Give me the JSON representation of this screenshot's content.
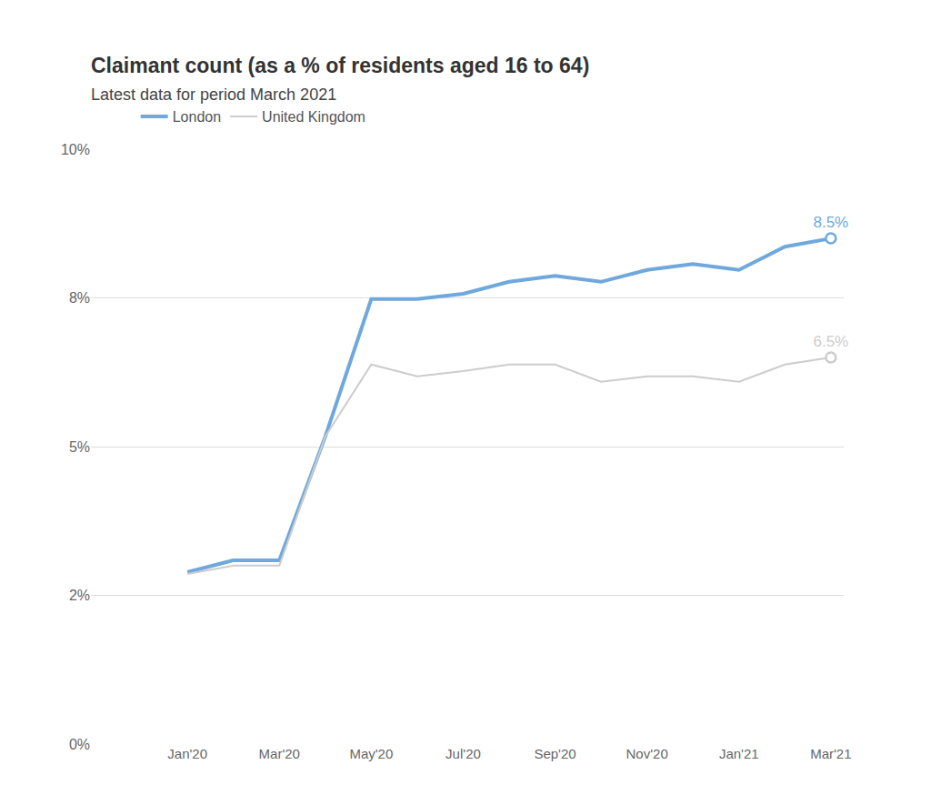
{
  "chart_data": {
    "type": "line",
    "title": "Claimant count (as a % of residents aged 16 to 64)",
    "subtitle": "Latest data for period March 2021",
    "categories": [
      "Jan'20",
      null,
      "Mar'20",
      null,
      "May'20",
      null,
      "Jul'20",
      null,
      "Sep'20",
      null,
      "Nov'20",
      null,
      "Jan'21",
      null,
      "Mar'21"
    ],
    "series": [
      {
        "name": "London",
        "color": "#6fa8dc",
        "values": [
          2.89,
          3.09,
          3.09,
          5.17,
          7.48,
          7.48,
          7.57,
          7.77,
          7.87,
          7.77,
          7.97,
          8.07,
          7.97,
          8.36,
          8.5
        ],
        "value_labels": [
          null,
          null,
          null,
          null,
          null,
          null,
          null,
          null,
          null,
          null,
          null,
          null,
          null,
          null,
          "8.5%"
        ]
      },
      {
        "name": "United Kingdom",
        "color": "#cccccc",
        "values": [
          2.86,
          3.0,
          3.0,
          5.17,
          6.38,
          6.18,
          6.27,
          6.38,
          6.38,
          6.09,
          6.18,
          6.18,
          6.09,
          6.38,
          6.5
        ],
        "value_labels": [
          null,
          null,
          null,
          null,
          null,
          null,
          null,
          null,
          null,
          null,
          null,
          null,
          null,
          null,
          "6.5%"
        ]
      }
    ],
    "ylim": [
      0,
      10
    ],
    "yticks": [
      {
        "value": 0,
        "label": "0%"
      },
      {
        "value": 2.5,
        "label": "2%"
      },
      {
        "value": 5,
        "label": "5%"
      },
      {
        "value": 7.5,
        "label": "8%"
      },
      {
        "value": 10,
        "label": "10%"
      }
    ],
    "grid": true,
    "legend": "top"
  }
}
